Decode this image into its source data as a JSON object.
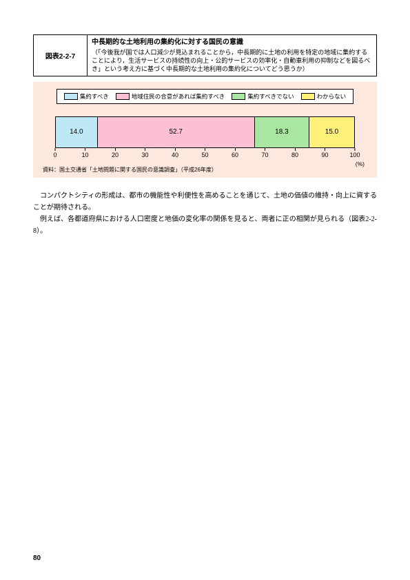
{
  "figure_header": {
    "number": "図表2-2-7",
    "title": "中長期的な土地利用の集約化に対する国民の意識",
    "subtitle": "（「今後我が国では人口減少が見込まれることから，中長期的に土地の利用を特定の地域に集約することにより，生活サービスの持続性の向上・公的サービスの効率化・自動車利用の抑制などを図るべき」という考え方に基づく中長期的な土地利用の集約化についてどう思うか）"
  },
  "chart": {
    "background_color": "#fde8dd",
    "legend_border_color": "#000000",
    "legend_bg": "#ffffff",
    "series": [
      {
        "label": "集約すべき",
        "value": 14.0,
        "display": "14.0",
        "color": "#bfe8f7"
      },
      {
        "label": "地域住民の合意があれば集約すべき",
        "value": 52.7,
        "display": "52.7",
        "color": "#fbc0d3"
      },
      {
        "label": "集約すべきでない",
        "value": 18.3,
        "display": "18.3",
        "color": "#a8e6a1"
      },
      {
        "label": "わからない",
        "value": 15.0,
        "display": "15.0",
        "color": "#fff07a"
      }
    ],
    "axis": {
      "min": 0,
      "max": 100,
      "step": 10,
      "ticks": [
        "0",
        "10",
        "20",
        "30",
        "40",
        "50",
        "60",
        "70",
        "80",
        "90",
        "100"
      ],
      "unit": "(%)"
    },
    "source": "資料：国土交通省「土地問題に関する国民の意識調査」（平成26年度）"
  },
  "body": {
    "p1": "コンパクトシティの形成は、都市の機能性や利便性を高めることを通じて、土地の価値の維持・向上に資することが期待される。",
    "p2": "例えば、各都道府県における人口密度と地価の変化率の関係を見ると、両者に正の相関が見られる（図表2-2-8）。"
  },
  "page_number": "80"
}
